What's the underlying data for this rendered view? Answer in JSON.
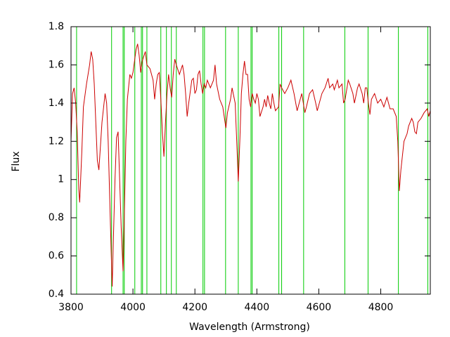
{
  "chart_data": {
    "type": "line",
    "xlabel": "Wavelength (Armstrong)",
    "ylabel": "Flux",
    "xlim": [
      3800,
      4960
    ],
    "ylim": [
      0.4,
      1.8
    ],
    "xticks": [
      3800,
      4000,
      4200,
      4400,
      4600,
      4800
    ],
    "yticks": [
      0.4,
      0.6,
      0.8,
      1,
      1.2,
      1.4,
      1.6,
      1.8
    ],
    "x": [
      3800,
      3805,
      3810,
      3815,
      3820,
      3825,
      3828,
      3835,
      3840,
      3850,
      3860,
      3865,
      3870,
      3875,
      3880,
      3885,
      3890,
      3900,
      3910,
      3915,
      3920,
      3925,
      3930,
      3933,
      3937,
      3942,
      3947,
      3952,
      3957,
      3962,
      3968,
      3972,
      3977,
      3982,
      3990,
      3995,
      4000,
      4005,
      4010,
      4015,
      4020,
      4025,
      4030,
      4040,
      4045,
      4055,
      4065,
      4070,
      4075,
      4080,
      4085,
      4090,
      4095,
      4100,
      4105,
      4110,
      4115,
      4120,
      4125,
      4130,
      4135,
      4140,
      4150,
      4160,
      4165,
      4170,
      4175,
      4180,
      4190,
      4195,
      4200,
      4205,
      4210,
      4215,
      4220,
      4225,
      4230,
      4235,
      4240,
      4245,
      4250,
      4255,
      4260,
      4265,
      4270,
      4280,
      4290,
      4300,
      4305,
      4315,
      4320,
      4330,
      4335,
      4340,
      4345,
      4350,
      4355,
      4360,
      4365,
      4370,
      4375,
      4380,
      4385,
      4390,
      4395,
      4400,
      4405,
      4410,
      4420,
      4425,
      4430,
      4435,
      4440,
      4445,
      4450,
      4455,
      4460,
      4470,
      4475,
      4480,
      4490,
      4500,
      4510,
      4520,
      4530,
      4540,
      4545,
      4555,
      4560,
      4570,
      4580,
      4590,
      4595,
      4610,
      4620,
      4630,
      4635,
      4645,
      4650,
      4660,
      4665,
      4675,
      4680,
      4685,
      4695,
      4700,
      4710,
      4715,
      4725,
      4730,
      4740,
      4745,
      4750,
      4755,
      4760,
      4765,
      4770,
      4780,
      4790,
      4800,
      4810,
      4820,
      4830,
      4840,
      4850,
      4855,
      4860,
      4865,
      4875,
      4885,
      4890,
      4900,
      4905,
      4910,
      4915,
      4920,
      4930,
      4940,
      4950,
      4955,
      4960
    ],
    "series": [
      {
        "color": "#cc0000",
        "values": [
          1.2,
          1.45,
          1.48,
          1.4,
          1.25,
          0.95,
          0.88,
          1.15,
          1.38,
          1.5,
          1.6,
          1.67,
          1.63,
          1.5,
          1.3,
          1.1,
          1.05,
          1.3,
          1.45,
          1.4,
          1.2,
          0.9,
          0.6,
          0.44,
          0.7,
          1.0,
          1.22,
          1.25,
          1.0,
          0.75,
          0.52,
          0.8,
          1.2,
          1.42,
          1.55,
          1.53,
          1.56,
          1.62,
          1.68,
          1.71,
          1.65,
          1.56,
          1.62,
          1.67,
          1.6,
          1.58,
          1.52,
          1.42,
          1.5,
          1.55,
          1.56,
          1.42,
          1.25,
          1.12,
          1.3,
          1.45,
          1.55,
          1.48,
          1.43,
          1.55,
          1.63,
          1.6,
          1.55,
          1.6,
          1.55,
          1.45,
          1.33,
          1.4,
          1.52,
          1.53,
          1.45,
          1.47,
          1.55,
          1.57,
          1.5,
          1.45,
          1.5,
          1.48,
          1.52,
          1.5,
          1.48,
          1.5,
          1.52,
          1.6,
          1.5,
          1.42,
          1.38,
          1.27,
          1.35,
          1.42,
          1.48,
          1.4,
          1.2,
          0.99,
          1.2,
          1.45,
          1.55,
          1.62,
          1.55,
          1.55,
          1.42,
          1.38,
          1.45,
          1.42,
          1.4,
          1.45,
          1.42,
          1.33,
          1.38,
          1.42,
          1.38,
          1.44,
          1.4,
          1.37,
          1.45,
          1.4,
          1.36,
          1.38,
          1.5,
          1.48,
          1.45,
          1.48,
          1.52,
          1.45,
          1.36,
          1.42,
          1.45,
          1.35,
          1.38,
          1.45,
          1.47,
          1.4,
          1.36,
          1.45,
          1.48,
          1.53,
          1.48,
          1.5,
          1.47,
          1.52,
          1.48,
          1.5,
          1.4,
          1.42,
          1.52,
          1.5,
          1.45,
          1.4,
          1.48,
          1.5,
          1.45,
          1.4,
          1.48,
          1.48,
          1.4,
          1.34,
          1.42,
          1.45,
          1.4,
          1.42,
          1.38,
          1.43,
          1.37,
          1.37,
          1.33,
          1.2,
          0.94,
          1.05,
          1.2,
          1.24,
          1.28,
          1.32,
          1.3,
          1.25,
          1.24,
          1.3,
          1.32,
          1.35,
          1.37,
          1.33,
          1.36
        ]
      }
    ],
    "vlines": {
      "color": "#00cc00",
      "x": [
        3818,
        3931,
        3968,
        3972,
        4006,
        4027,
        4031,
        4045,
        4090,
        4108,
        4124,
        4140,
        4226,
        4231,
        4299,
        4340,
        4381,
        4385,
        4471,
        4480,
        4551,
        4684,
        4759,
        4857,
        4952
      ]
    }
  }
}
